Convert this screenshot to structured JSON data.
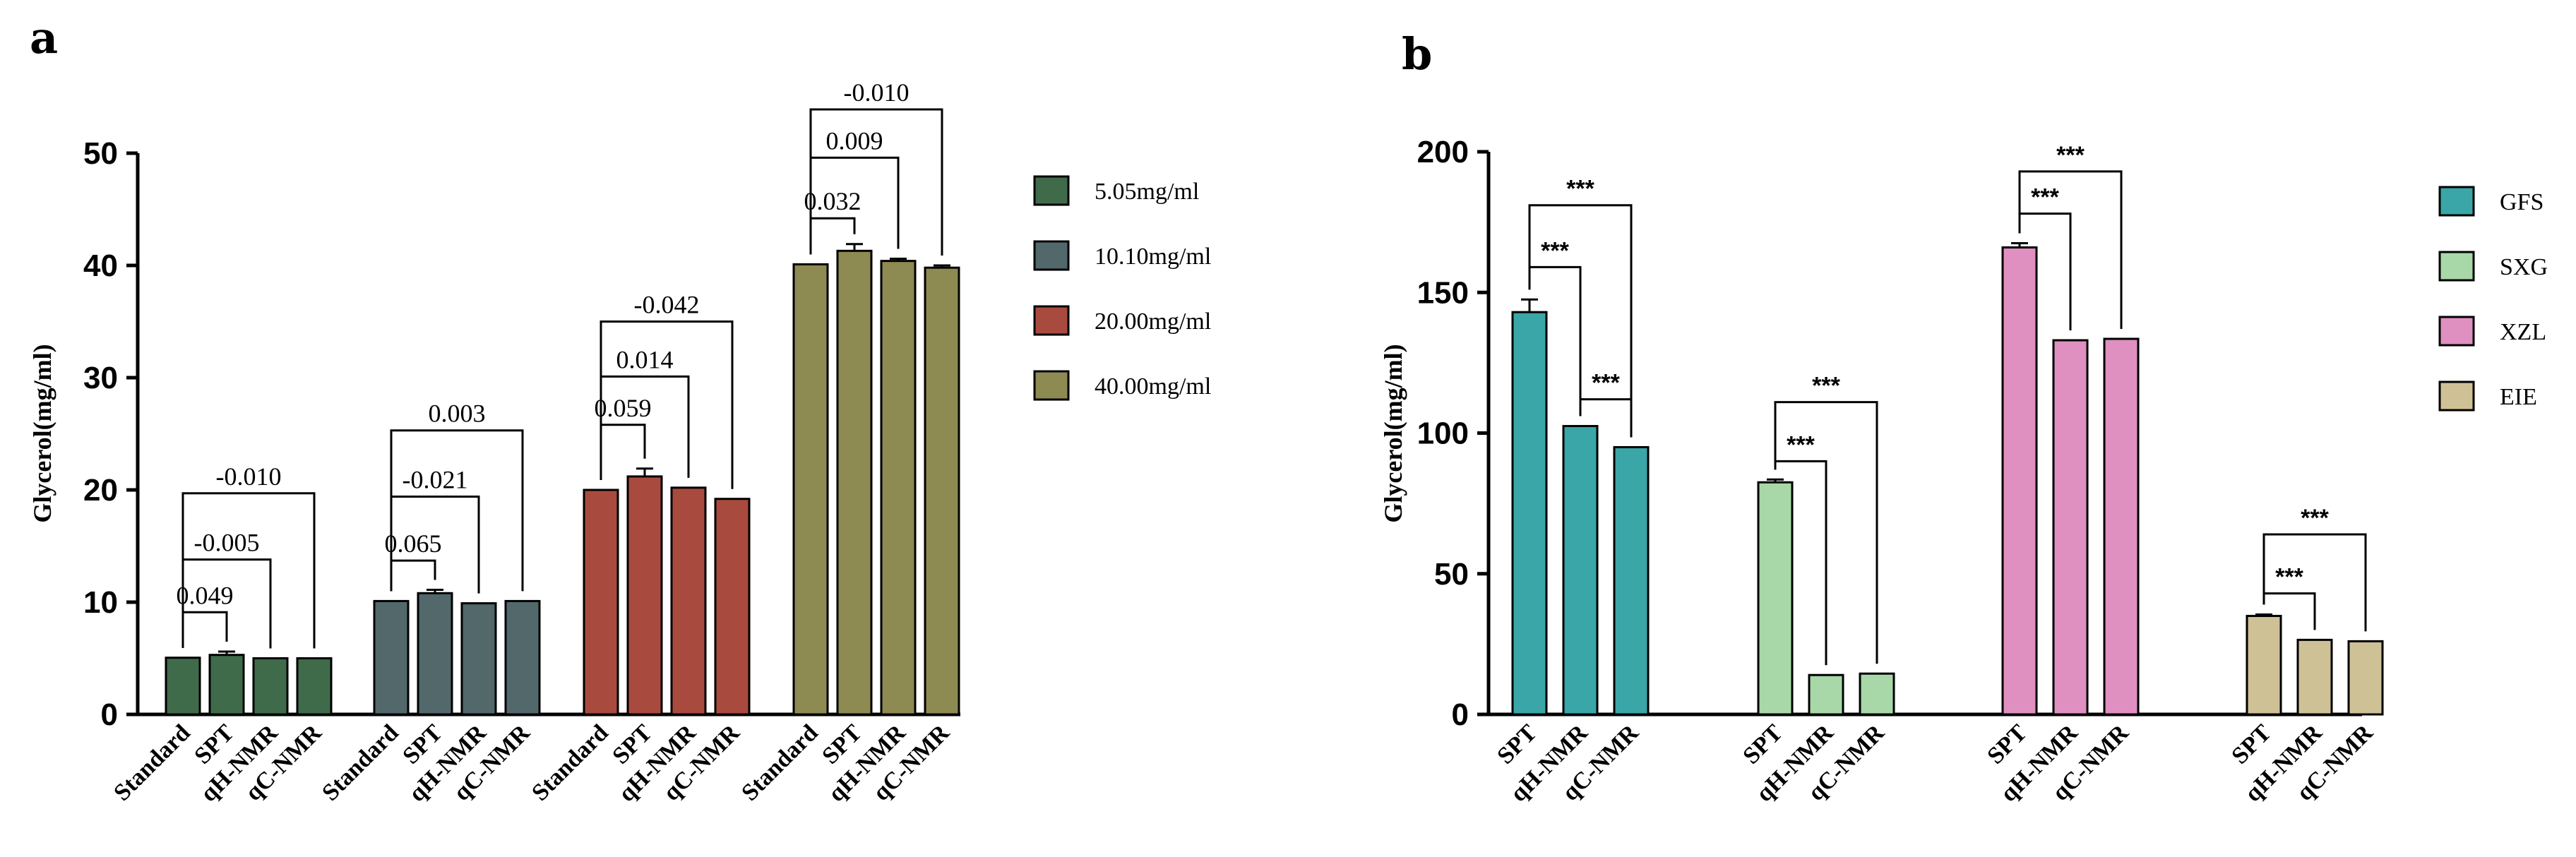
{
  "panels": {
    "a": {
      "letter": "a"
    },
    "b": {
      "letter": "b"
    }
  },
  "chart_data": [
    {
      "id": "a",
      "type": "bar",
      "ylabel": "Glycerol(mg/ml)",
      "ylim": [
        0,
        50
      ],
      "yticks": [
        "0",
        "10",
        "20",
        "30",
        "40",
        "50"
      ],
      "categories": [
        "Standard",
        "SPT",
        "qH-NMR",
        "qC-NMR"
      ],
      "series": [
        {
          "name": "5.05mg/ml",
          "color": "#3f6b4a",
          "values": [
            5.05,
            5.3,
            5.0,
            5.0
          ],
          "errors": [
            0,
            0.3,
            0,
            0
          ]
        },
        {
          "name": "10.10mg/ml",
          "color": "#52686b",
          "values": [
            10.1,
            10.8,
            9.9,
            10.1
          ],
          "errors": [
            0,
            0.3,
            0,
            0
          ]
        },
        {
          "name": "20.00mg/ml",
          "color": "#a94a3f",
          "values": [
            20.0,
            21.2,
            20.2,
            19.2
          ],
          "errors": [
            0,
            0.7,
            0,
            0
          ]
        },
        {
          "name": "40.00mg/ml",
          "color": "#8d8a52",
          "values": [
            40.1,
            41.3,
            40.4,
            39.8
          ],
          "errors": [
            0,
            0.6,
            0.2,
            0.2
          ]
        }
      ],
      "annotations": [
        {
          "group": 0,
          "from": 0,
          "to": 1,
          "label": "0.049",
          "y": 9.1
        },
        {
          "group": 0,
          "from": 0,
          "to": 2,
          "label": "-0.005",
          "y": 13.8
        },
        {
          "group": 0,
          "from": 0,
          "to": 3,
          "label": "-0.010",
          "y": 19.7
        },
        {
          "group": 1,
          "from": 0,
          "to": 1,
          "label": "0.065",
          "y": 13.7
        },
        {
          "group": 1,
          "from": 0,
          "to": 2,
          "label": "-0.021",
          "y": 19.4
        },
        {
          "group": 1,
          "from": 0,
          "to": 3,
          "label": "0.003",
          "y": 25.3
        },
        {
          "group": 2,
          "from": 0,
          "to": 1,
          "label": "0.059",
          "y": 25.8
        },
        {
          "group": 2,
          "from": 0,
          "to": 2,
          "label": "0.014",
          "y": 30.1
        },
        {
          "group": 2,
          "from": 0,
          "to": 3,
          "label": "-0.042",
          "y": 35.0
        },
        {
          "group": 3,
          "from": 0,
          "to": 1,
          "label": "0.032",
          "y": 44.2
        },
        {
          "group": 3,
          "from": 0,
          "to": 2,
          "label": "0.009",
          "y": 49.6
        },
        {
          "group": 3,
          "from": 0,
          "to": 3,
          "label": "-0.010",
          "y": 53.9
        }
      ]
    },
    {
      "id": "b",
      "type": "bar",
      "ylabel": "Glycerol(mg/ml)",
      "ylim": [
        0,
        200
      ],
      "yticks": [
        "0",
        "50",
        "100",
        "150",
        "200"
      ],
      "categories": [
        "SPT",
        "qH-NMR",
        "qC-NMR"
      ],
      "series": [
        {
          "name": "GFS",
          "color": "#3aa6a8",
          "values": [
            143,
            102.5,
            95
          ],
          "errors": [
            4.5,
            0,
            0
          ]
        },
        {
          "name": "SXG",
          "color": "#a8d8a8",
          "values": [
            82.5,
            14,
            14.5
          ],
          "errors": [
            1,
            0,
            0
          ]
        },
        {
          "name": "XZL",
          "color": "#df8fc0",
          "values": [
            166,
            133,
            133.5
          ],
          "errors": [
            1.5,
            0,
            0
          ]
        },
        {
          "name": "EIE",
          "color": "#cfc196",
          "values": [
            35,
            26.5,
            26
          ],
          "errors": [
            0.5,
            0,
            0
          ]
        }
      ],
      "annotations": [
        {
          "group": 0,
          "from": 0,
          "to": 1,
          "label": "***",
          "y": 159
        },
        {
          "group": 0,
          "from": 0,
          "to": 2,
          "label": "***",
          "y": 181
        },
        {
          "group": 0,
          "from": 1,
          "to": 2,
          "label": "***",
          "y": 112
        },
        {
          "group": 1,
          "from": 0,
          "to": 1,
          "label": "***",
          "y": 90
        },
        {
          "group": 1,
          "from": 0,
          "to": 2,
          "label": "***",
          "y": 111
        },
        {
          "group": 2,
          "from": 0,
          "to": 1,
          "label": "***",
          "y": 178
        },
        {
          "group": 2,
          "from": 0,
          "to": 2,
          "label": "***",
          "y": 193
        },
        {
          "group": 3,
          "from": 0,
          "to": 1,
          "label": "***",
          "y": 43
        },
        {
          "group": 3,
          "from": 0,
          "to": 2,
          "label": "***",
          "y": 64
        }
      ]
    }
  ]
}
